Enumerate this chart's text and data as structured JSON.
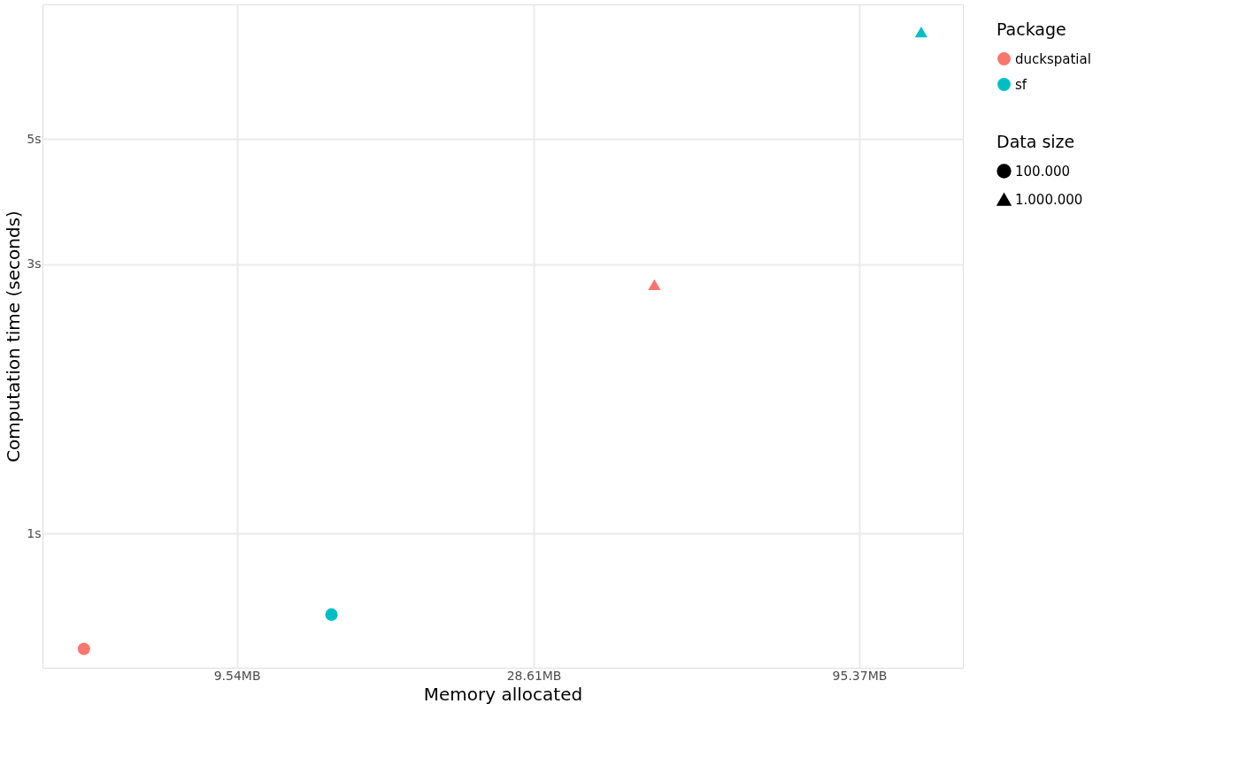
{
  "chart_data": {
    "type": "scatter",
    "xlabel": "Memory allocated",
    "ylabel": "Computation time (seconds)",
    "log": "xy",
    "grid": true,
    "legend": "right",
    "legend_title": [
      "Package",
      "Data size"
    ],
    "series": [
      {
        "name": "duckspatial",
        "color": "#f8766d",
        "x": [
          5.42,
          44.7
        ],
        "values": [
          0.624,
          2.76
        ],
        "marker": [
          "circle",
          "triangle"
        ]
      },
      {
        "name": "sf",
        "color": "#00bfc4",
        "x": [
          13.54,
          119.9
        ],
        "values": [
          0.718,
          7.74
        ],
        "marker": [
          "circle",
          "triangle"
        ]
      },
      {
        "name": "100.000",
        "color": "#000000",
        "marker": "circle"
      },
      {
        "name": "1.000.000",
        "color": "#000000",
        "marker": "triangle"
      }
    ],
    "xlim": [
      4.65,
      139.9
    ],
    "ylim": [
      0.578,
      8.66
    ],
    "xticks": [
      {
        "value": 9.54,
        "label": "9.54MB"
      },
      {
        "value": 28.61,
        "label": "28.61MB"
      },
      {
        "value": 95.37,
        "label": "95.37MB"
      }
    ],
    "yticks": [
      {
        "value": 1,
        "label": "1s"
      },
      {
        "value": 3,
        "label": "3s"
      },
      {
        "value": 5,
        "label": "5s"
      }
    ]
  }
}
